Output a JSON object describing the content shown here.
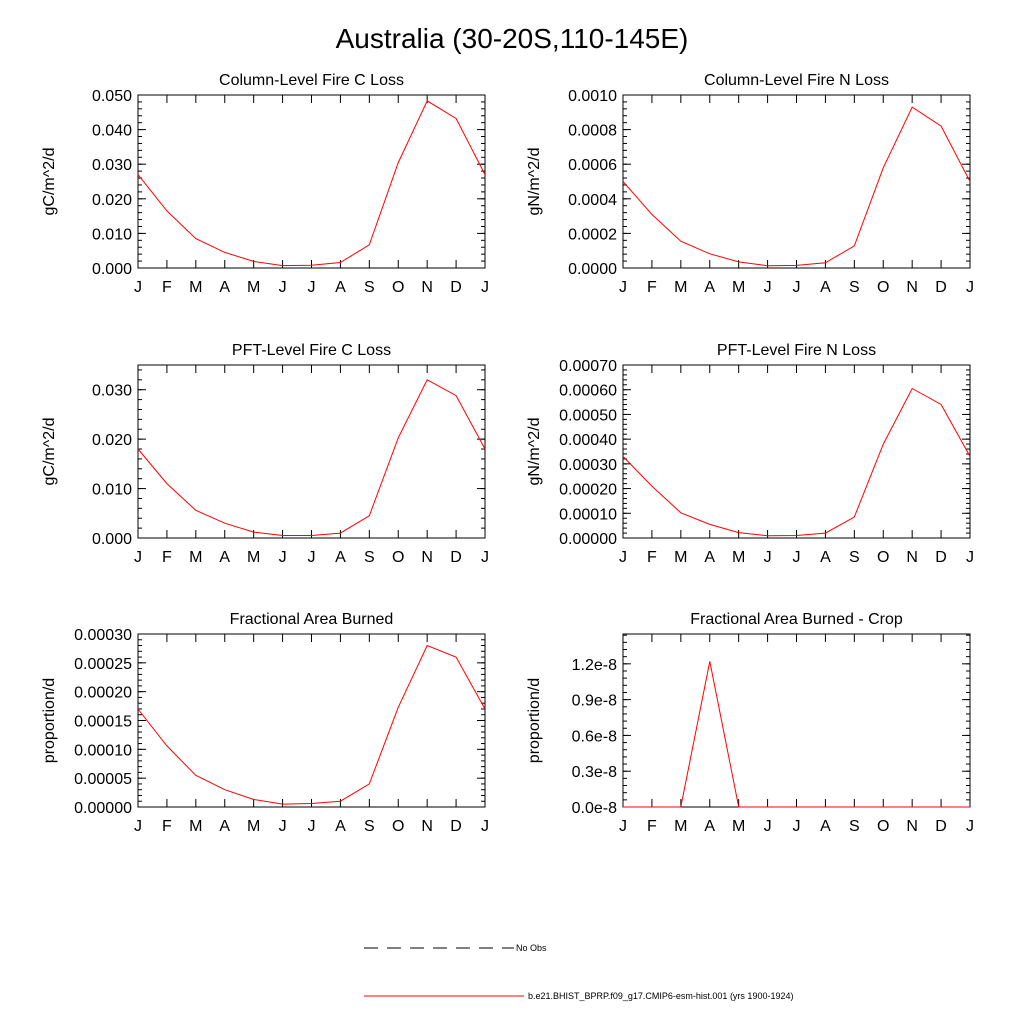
{
  "figure": {
    "title": "Australia (30-20S,110-145E)"
  },
  "legend": {
    "entries": [
      {
        "label": "No Obs",
        "style": "dashed",
        "color": "#000000"
      },
      {
        "label": "b.e21.BHIST_BPRP.f09_g17.CMIP6-esm-hist.001 (yrs 1900-1924)",
        "style": "solid",
        "color": "#ff0000"
      }
    ]
  },
  "chart_data": [
    {
      "type": "line",
      "title": "Column-Level Fire C Loss",
      "xlabel": "",
      "ylabel": "gC/m^2/d",
      "categories": [
        "J",
        "F",
        "M",
        "A",
        "M",
        "J",
        "J",
        "A",
        "S",
        "O",
        "N",
        "D",
        "J"
      ],
      "ylim": [
        0,
        0.05
      ],
      "yticks": [
        0,
        0.01,
        0.02,
        0.03,
        0.04,
        0.05
      ],
      "ytick_labels": [
        "0.000",
        "0.010",
        "0.020",
        "0.030",
        "0.040",
        "0.050"
      ],
      "series": [
        {
          "name": "b.e21.BHIST_BPRP.f09_g17.CMIP6-esm-hist.001 (yrs 1900-1924)",
          "color": "#ff0000",
          "values": [
            0.027,
            0.0165,
            0.0085,
            0.0045,
            0.0019,
            0.0007,
            0.0008,
            0.0016,
            0.0067,
            0.0305,
            0.0483,
            0.0432,
            0.027
          ]
        }
      ]
    },
    {
      "type": "line",
      "title": "Column-Level Fire N Loss",
      "xlabel": "",
      "ylabel": "gN/m^2/d",
      "categories": [
        "J",
        "F",
        "M",
        "A",
        "M",
        "J",
        "J",
        "A",
        "S",
        "O",
        "N",
        "D",
        "J"
      ],
      "ylim": [
        0,
        0.001
      ],
      "yticks": [
        0,
        0.0002,
        0.0004,
        0.0006,
        0.0008,
        0.001
      ],
      "ytick_labels": [
        "0.0000",
        "0.0002",
        "0.0004",
        "0.0006",
        "0.0008",
        "0.0010"
      ],
      "series": [
        {
          "name": "b.e21.BHIST_BPRP.f09_g17.CMIP6-esm-hist.001 (yrs 1900-1924)",
          "color": "#ff0000",
          "values": [
            0.0005,
            0.00031,
            0.000155,
            8.2e-05,
            3.5e-05,
            1.3e-05,
            1.5e-05,
            3e-05,
            0.000128,
            0.00058,
            0.00093,
            0.00082,
            0.0005
          ]
        }
      ]
    },
    {
      "type": "line",
      "title": "PFT-Level Fire C Loss",
      "xlabel": "",
      "ylabel": "gC/m^2/d",
      "categories": [
        "J",
        "F",
        "M",
        "A",
        "M",
        "J",
        "J",
        "A",
        "S",
        "O",
        "N",
        "D",
        "J"
      ],
      "ylim": [
        0,
        0.035
      ],
      "yticks": [
        0,
        0.01,
        0.02,
        0.03
      ],
      "ytick_labels": [
        "0.000",
        "0.010",
        "0.020",
        "0.030"
      ],
      "series": [
        {
          "name": "b.e21.BHIST_BPRP.f09_g17.CMIP6-esm-hist.001 (yrs 1900-1924)",
          "color": "#ff0000",
          "values": [
            0.018,
            0.011,
            0.0056,
            0.003,
            0.0012,
            0.0005,
            0.0005,
            0.001,
            0.0045,
            0.0203,
            0.032,
            0.0288,
            0.018
          ]
        }
      ]
    },
    {
      "type": "line",
      "title": "PFT-Level Fire N Loss",
      "xlabel": "",
      "ylabel": "gN/m^2/d",
      "categories": [
        "J",
        "F",
        "M",
        "A",
        "M",
        "J",
        "J",
        "A",
        "S",
        "O",
        "N",
        "D",
        "J"
      ],
      "ylim": [
        0,
        0.0007
      ],
      "yticks": [
        0,
        0.0001,
        0.0002,
        0.0003,
        0.0004,
        0.0005,
        0.0006,
        0.0007
      ],
      "ytick_labels": [
        "0.00000",
        "0.00010",
        "0.00020",
        "0.00030",
        "0.00040",
        "0.00050",
        "0.00060",
        "0.00070"
      ],
      "series": [
        {
          "name": "b.e21.BHIST_BPRP.f09_g17.CMIP6-esm-hist.001 (yrs 1900-1924)",
          "color": "#ff0000",
          "values": [
            0.00033,
            0.00021,
            0.000102,
            5.5e-05,
            2.2e-05,
            9e-06,
            1e-05,
            2e-05,
            8.5e-05,
            0.00038,
            0.000605,
            0.00054,
            0.00033
          ]
        }
      ]
    },
    {
      "type": "line",
      "title": "Fractional Area Burned",
      "xlabel": "",
      "ylabel": "proportion/d",
      "categories": [
        "J",
        "F",
        "M",
        "A",
        "M",
        "J",
        "J",
        "A",
        "S",
        "O",
        "N",
        "D",
        "J"
      ],
      "ylim": [
        0,
        0.0003
      ],
      "yticks": [
        0,
        5e-05,
        0.0001,
        0.00015,
        0.0002,
        0.00025,
        0.0003
      ],
      "ytick_labels": [
        "0.00000",
        "0.00005",
        "0.00010",
        "0.00015",
        "0.00020",
        "0.00025",
        "0.00030"
      ],
      "series": [
        {
          "name": "b.e21.BHIST_BPRP.f09_g17.CMIP6-esm-hist.001 (yrs 1900-1924)",
          "color": "#ff0000",
          "values": [
            0.00017,
            0.000106,
            5.5e-05,
            3e-05,
            1.3e-05,
            5e-06,
            6e-06,
            1e-05,
            4e-05,
            0.000173,
            0.00028,
            0.00026,
            0.00017
          ]
        }
      ]
    },
    {
      "type": "line",
      "title": "Fractional Area Burned - Crop",
      "xlabel": "",
      "ylabel": "proportion/d",
      "categories": [
        "J",
        "F",
        "M",
        "A",
        "M",
        "J",
        "J",
        "A",
        "S",
        "O",
        "N",
        "D",
        "J"
      ],
      "ylim": [
        0,
        1.45e-08
      ],
      "yticks": [
        0,
        3e-09,
        6e-09,
        9e-09,
        1.2e-08
      ],
      "ytick_labels": [
        "0.0e-8",
        "0.3e-8",
        "0.6e-8",
        "0.9e-8",
        "1.2e-8"
      ],
      "series": [
        {
          "name": "b.e21.BHIST_BPRP.f09_g17.CMIP6-esm-hist.001 (yrs 1900-1924)",
          "color": "#ff0000",
          "values": [
            0,
            0,
            0,
            1.22e-08,
            0,
            0,
            0,
            0,
            0,
            0,
            0,
            0,
            0
          ]
        }
      ]
    }
  ]
}
